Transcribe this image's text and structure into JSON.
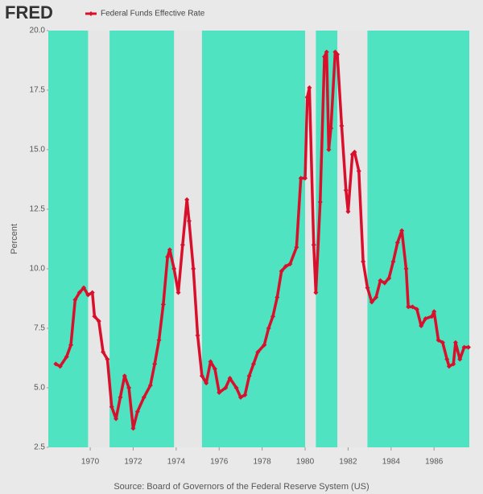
{
  "chart_data": {
    "type": "line",
    "logo": "FRED",
    "ylabel": "Percent",
    "source": "Source: Board of Governors of the Federal Reserve System (US)",
    "xlim": [
      1968.05,
      1987.64
    ],
    "xticks": [
      1970,
      1972,
      1974,
      1976,
      1978,
      1980,
      1982,
      1984,
      1986
    ],
    "ylim": [
      2.5,
      20
    ],
    "yticks": [
      {
        "value": 2.5,
        "label": "2.5"
      },
      {
        "value": 5,
        "label": "5.0"
      },
      {
        "value": 7.5,
        "label": "7.5"
      },
      {
        "value": 10,
        "label": "10.0"
      },
      {
        "value": 12.5,
        "label": "12.5"
      },
      {
        "value": 15,
        "label": "15.0"
      },
      {
        "value": 17.5,
        "label": "17.5"
      },
      {
        "value": 20,
        "label": "20.0"
      }
    ],
    "background_color": "#50e3c2",
    "recession_color": "#e6e6e6",
    "recessions": [
      {
        "start": 1969.9,
        "end": 1970.9
      },
      {
        "start": 1973.9,
        "end": 1975.2
      },
      {
        "start": 1980.0,
        "end": 1980.5
      },
      {
        "start": 1981.5,
        "end": 1982.9
      }
    ],
    "x": [
      1968.4,
      1968.6,
      1968.9,
      1969.1,
      1969.3,
      1969.5,
      1969.7,
      1969.9,
      1970.1,
      1970.2,
      1970.4,
      1970.6,
      1970.8,
      1971.0,
      1971.2,
      1971.4,
      1971.6,
      1971.8,
      1972.0,
      1972.2,
      1972.5,
      1972.8,
      1973.0,
      1973.2,
      1973.4,
      1973.6,
      1973.7,
      1973.9,
      1974.1,
      1974.3,
      1974.5,
      1974.6,
      1974.8,
      1975.0,
      1975.2,
      1975.4,
      1975.6,
      1975.8,
      1976.0,
      1976.3,
      1976.5,
      1976.8,
      1977.0,
      1977.2,
      1977.4,
      1977.6,
      1977.8,
      1978.1,
      1978.3,
      1978.5,
      1978.7,
      1978.9,
      1979.1,
      1979.3,
      1979.6,
      1979.8,
      1980.0,
      1980.1,
      1980.2,
      1980.4,
      1980.5,
      1980.7,
      1980.9,
      1981.0,
      1981.1,
      1981.2,
      1981.4,
      1981.5,
      1981.7,
      1981.9,
      1982.0,
      1982.2,
      1982.3,
      1982.5,
      1982.7,
      1982.9,
      1983.1,
      1983.3,
      1983.5,
      1983.7,
      1983.9,
      1984.1,
      1984.3,
      1984.5,
      1984.7,
      1984.8,
      1985.0,
      1985.2,
      1985.4,
      1985.6,
      1985.9,
      1986.0,
      1986.2,
      1986.4,
      1986.6,
      1986.7,
      1986.9,
      1987.0,
      1987.2,
      1987.4,
      1987.6
    ],
    "series": [
      {
        "name": "Federal Funds Effective Rate",
        "color": "#d9102c",
        "values": [
          6.0,
          5.9,
          6.3,
          6.8,
          8.7,
          9.0,
          9.2,
          8.9,
          9.0,
          8.0,
          7.8,
          6.5,
          6.2,
          4.2,
          3.7,
          4.6,
          5.5,
          5.0,
          3.3,
          4.0,
          4.6,
          5.1,
          6.0,
          7.0,
          8.5,
          10.5,
          10.8,
          10.0,
          9.0,
          11.0,
          12.9,
          12.0,
          10.0,
          7.2,
          5.5,
          5.2,
          6.1,
          5.8,
          4.8,
          5.0,
          5.4,
          5.0,
          4.6,
          4.7,
          5.5,
          6.0,
          6.5,
          6.8,
          7.5,
          8.0,
          8.8,
          9.9,
          10.1,
          10.2,
          10.9,
          13.8,
          13.8,
          17.2,
          17.6,
          11.0,
          9.0,
          12.8,
          18.9,
          19.1,
          15.0,
          15.9,
          19.1,
          19.0,
          16.0,
          13.3,
          12.4,
          14.8,
          14.9,
          14.1,
          10.3,
          9.2,
          8.6,
          8.8,
          9.5,
          9.4,
          9.6,
          10.3,
          11.1,
          11.6,
          10.0,
          8.4,
          8.4,
          8.3,
          7.6,
          7.9,
          8.0,
          8.2,
          7.0,
          6.9,
          6.2,
          5.9,
          6.0,
          6.9,
          6.2,
          6.7,
          6.7
        ]
      }
    ]
  }
}
